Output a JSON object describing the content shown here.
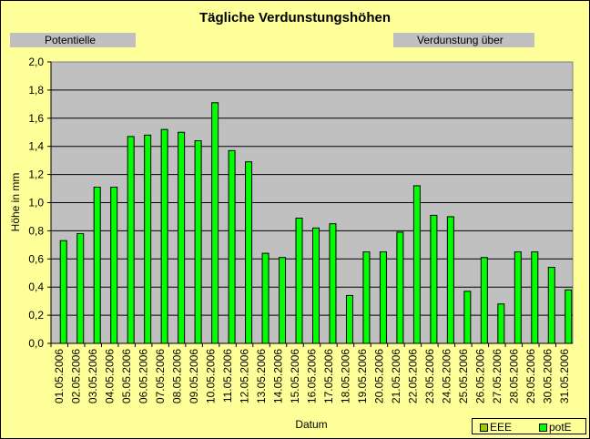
{
  "chart_data": {
    "type": "bar",
    "title": "Tägliche Verdunstungshöhen",
    "xlabel": "Datum",
    "ylabel": "Höhe in mm",
    "ylim": [
      0,
      2
    ],
    "yticks": [
      "0,0",
      "0,2",
      "0,4",
      "0,6",
      "0,8",
      "1,0",
      "1,2",
      "1,4",
      "1,6",
      "1,8",
      "2,0"
    ],
    "grid": true,
    "legend_position": "bottom-right",
    "categories": [
      "01.05.2006",
      "02.05.2006",
      "03.05.2006",
      "04.05.2006",
      "05.05.2006",
      "06.05.2006",
      "07.05.2006",
      "08.05.2006",
      "09.05.2006",
      "10.05.2006",
      "11.05.2006",
      "12.05.2006",
      "13.05.2006",
      "14.05.2006",
      "15.05.2006",
      "16.05.2006",
      "17.05.2006",
      "18.05.2006",
      "19.05.2006",
      "20.05.2006",
      "21.05.2006",
      "22.05.2006",
      "23.05.2006",
      "24.05.2006",
      "25.05.2006",
      "26.05.2006",
      "27.05.2006",
      "28.05.2006",
      "29.05.2006",
      "30.05.2006",
      "31.05.2006"
    ],
    "series": [
      {
        "name": "EEE",
        "color": "#99cc00",
        "values": [
          0,
          0,
          0,
          0,
          0,
          0,
          0,
          0,
          0,
          0,
          0,
          0,
          0,
          0,
          0,
          0,
          0,
          0,
          0,
          0,
          0,
          0,
          0,
          0,
          0,
          0,
          0,
          0,
          0,
          0,
          0
        ]
      },
      {
        "name": "potE",
        "color": "#00ff00",
        "values": [
          0.73,
          0.78,
          1.11,
          1.11,
          1.47,
          1.48,
          1.52,
          1.5,
          1.44,
          1.71,
          1.37,
          1.29,
          0.64,
          0.61,
          0.89,
          0.82,
          0.85,
          0.34,
          0.65,
          0.65,
          0.79,
          1.12,
          0.91,
          0.9,
          0.37,
          0.61,
          0.28,
          0.65,
          0.65,
          0.54,
          0.38
        ]
      }
    ]
  },
  "labels": {
    "left": "Potentielle",
    "right": "Verdunstung über"
  },
  "colors": {
    "plot_background": "#c0c0c0",
    "page_background": "#ffff99",
    "bar_border": "#000000"
  }
}
